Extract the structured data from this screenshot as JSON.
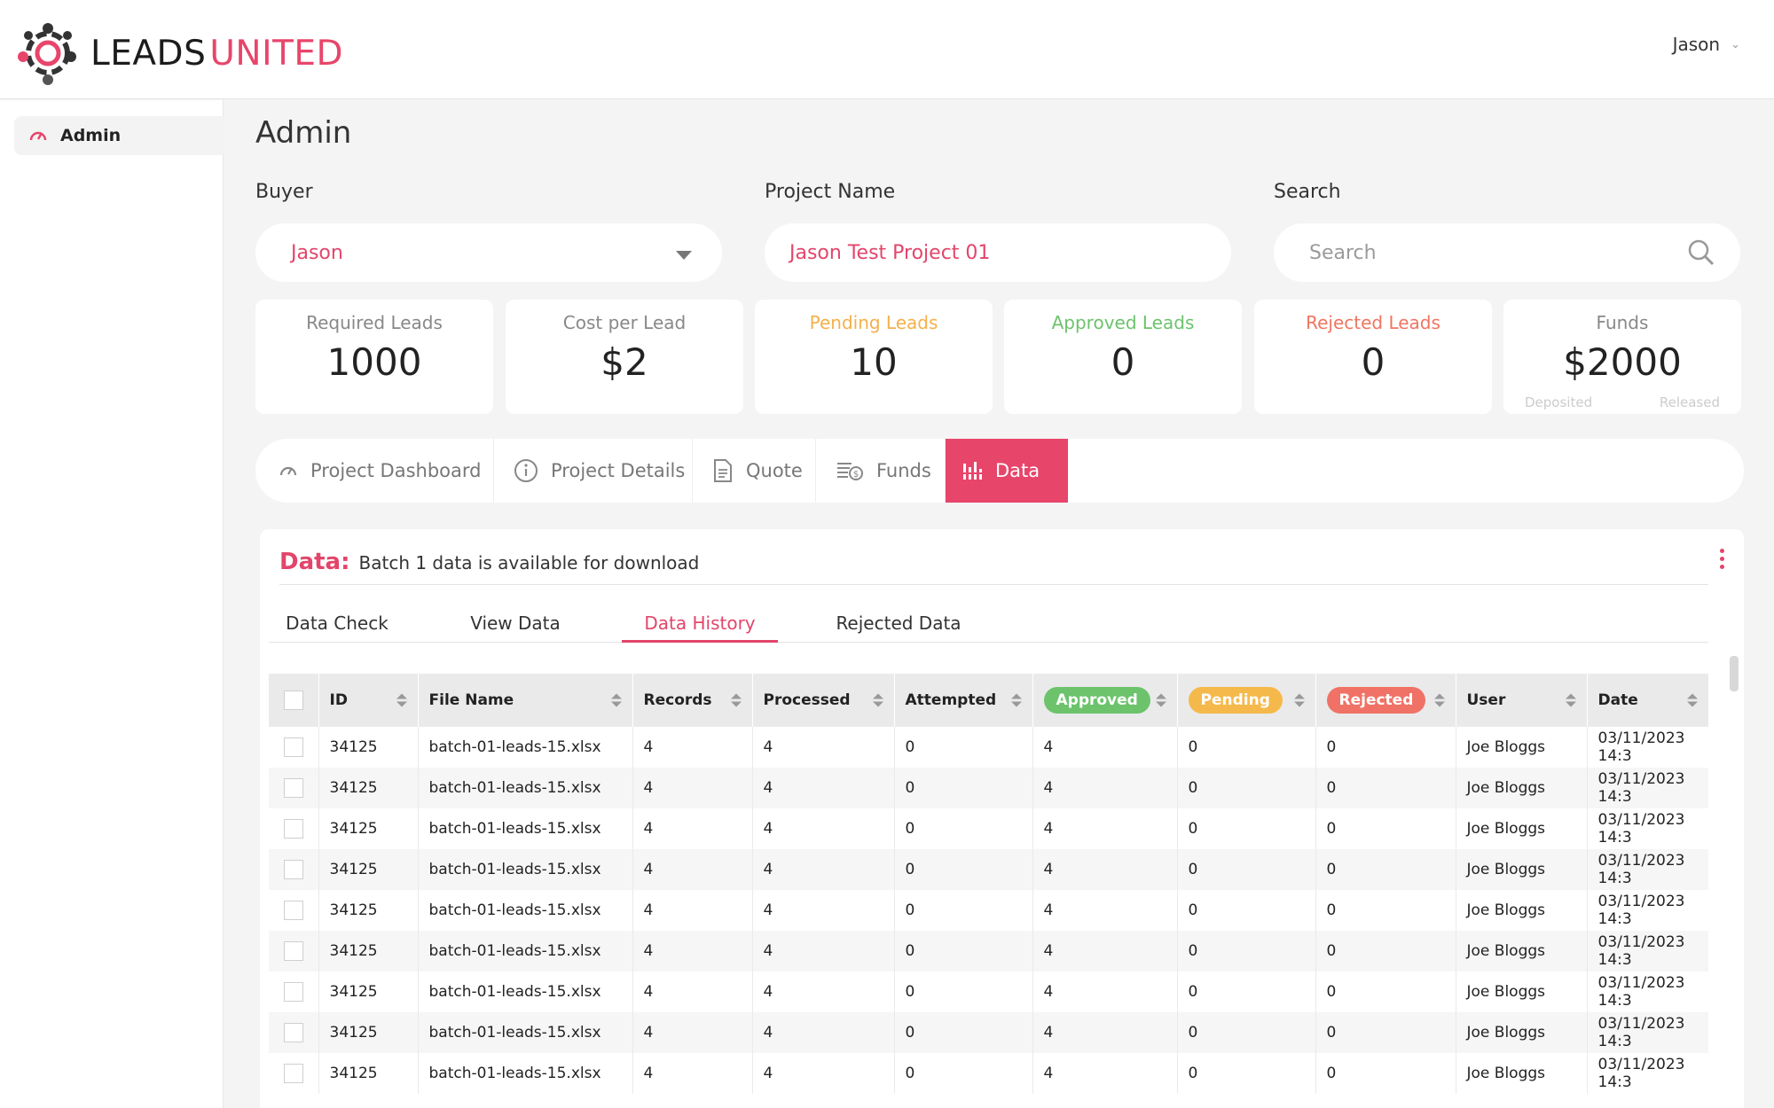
{
  "brand": {
    "word1": "LEADS",
    "word2": "UNITED",
    "accent": "#e8456b"
  },
  "header": {
    "user_name": "Jason"
  },
  "sidebar": {
    "items": [
      {
        "label": "Admin",
        "icon": "gauge-icon"
      }
    ]
  },
  "page": {
    "title": "Admin"
  },
  "filters": {
    "buyer": {
      "label": "Buyer",
      "value": "Jason"
    },
    "project": {
      "label": "Project Name",
      "value": "Jason Test Project 01"
    },
    "search": {
      "label": "Search",
      "placeholder": "Search"
    }
  },
  "stats": [
    {
      "label": "Required Leads",
      "value": "1000",
      "color": "#888888"
    },
    {
      "label": "Cost per Lead",
      "value": "$2",
      "color": "#888888"
    },
    {
      "label": "Pending Leads",
      "value": "10",
      "color": "#f4b04c"
    },
    {
      "label": "Approved Leads",
      "value": "0",
      "color": "#6cc36c"
    },
    {
      "label": "Rejected Leads",
      "value": "0",
      "color": "#f07560"
    },
    {
      "label": "Funds",
      "value": "$2000",
      "color": "#888888",
      "sub_left": "Deposited",
      "sub_right": "Released"
    }
  ],
  "tabs": [
    {
      "label": "Project Dashboard",
      "icon": "gauge-icon",
      "active": false
    },
    {
      "label": "Project Details",
      "icon": "info-icon",
      "active": false
    },
    {
      "label": "Quote",
      "icon": "document-icon",
      "active": false
    },
    {
      "label": "Funds",
      "icon": "money-icon",
      "active": false
    },
    {
      "label": "Data",
      "icon": "bar-chart-icon",
      "active": true
    }
  ],
  "panel": {
    "title": "Data:",
    "message": "Batch 1 data is available for download",
    "sub_tabs": [
      "Data Check",
      "View Data",
      "Data History",
      "Rejected Data"
    ],
    "active_sub_tab": "Data History"
  },
  "table": {
    "columns": [
      "ID",
      "File Name",
      "Records",
      "Processed",
      "Attempted",
      "Approved",
      "Pending",
      "Rejected",
      "User",
      "Date"
    ],
    "pill_colors": {
      "Approved": "#6cc36c",
      "Pending": "#f5b94b",
      "Rejected": "#f07266"
    },
    "rows": [
      [
        "34125",
        "batch-01-leads-15.xlsx",
        "4",
        "4",
        "0",
        "4",
        "0",
        "0",
        "Joe Bloggs",
        "03/11/2023 14:3"
      ],
      [
        "34125",
        "batch-01-leads-15.xlsx",
        "4",
        "4",
        "0",
        "4",
        "0",
        "0",
        "Joe Bloggs",
        "03/11/2023 14:3"
      ],
      [
        "34125",
        "batch-01-leads-15.xlsx",
        "4",
        "4",
        "0",
        "4",
        "0",
        "0",
        "Joe Bloggs",
        "03/11/2023 14:3"
      ],
      [
        "34125",
        "batch-01-leads-15.xlsx",
        "4",
        "4",
        "0",
        "4",
        "0",
        "0",
        "Joe Bloggs",
        "03/11/2023 14:3"
      ],
      [
        "34125",
        "batch-01-leads-15.xlsx",
        "4",
        "4",
        "0",
        "4",
        "0",
        "0",
        "Joe Bloggs",
        "03/11/2023 14:3"
      ],
      [
        "34125",
        "batch-01-leads-15.xlsx",
        "4",
        "4",
        "0",
        "4",
        "0",
        "0",
        "Joe Bloggs",
        "03/11/2023 14:3"
      ],
      [
        "34125",
        "batch-01-leads-15.xlsx",
        "4",
        "4",
        "0",
        "4",
        "0",
        "0",
        "Joe Bloggs",
        "03/11/2023 14:3"
      ],
      [
        "34125",
        "batch-01-leads-15.xlsx",
        "4",
        "4",
        "0",
        "4",
        "0",
        "0",
        "Joe Bloggs",
        "03/11/2023 14:3"
      ],
      [
        "34125",
        "batch-01-leads-15.xlsx",
        "4",
        "4",
        "0",
        "4",
        "0",
        "0",
        "Joe Bloggs",
        "03/11/2023 14:3"
      ]
    ]
  }
}
